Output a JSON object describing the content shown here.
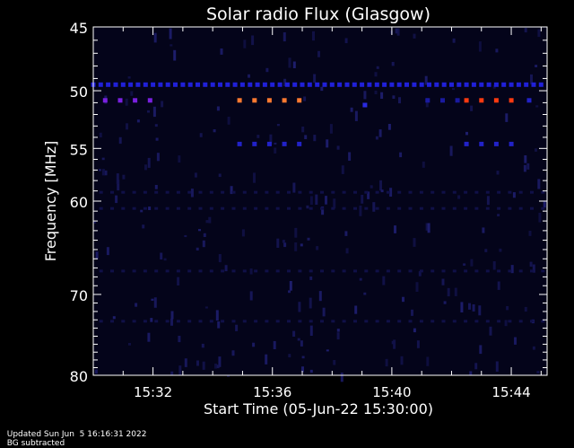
{
  "chart_data": {
    "type": "heatmap",
    "title": "Solar radio Flux (Glasgow)",
    "xlabel": "Start Time (05-Jun-22 15:30:00)",
    "ylabel": "Frequency [MHz]",
    "x_unit": "minutes since 15:30:00",
    "xlim": [
      0,
      15.2
    ],
    "ylim": [
      45,
      80
    ],
    "x_ticks": [
      {
        "value": 2,
        "label": "15:32"
      },
      {
        "value": 6,
        "label": "15:36"
      },
      {
        "value": 10,
        "label": "15:40"
      },
      {
        "value": 14,
        "label": "15:44"
      }
    ],
    "y_ticks": [
      {
        "value": 45,
        "label": "45"
      },
      {
        "value": 50,
        "label": "50"
      },
      {
        "value": 55,
        "label": "55"
      },
      {
        "value": 60,
        "label": "60"
      },
      {
        "value": 70,
        "label": "70"
      },
      {
        "value": 80,
        "label": "80"
      }
    ],
    "background_color": "#04041a",
    "features": [
      {
        "name": "continuous band",
        "freq": 49.5,
        "t_start": 0.0,
        "t_end": 15.2,
        "period": 0.25,
        "color": "#2020d8"
      },
      {
        "name": "burst 1",
        "freq": 50.8,
        "t_start": 0.4,
        "t_end": 2.1,
        "period": 0.5,
        "color": "#7a20e0"
      },
      {
        "name": "burst 2",
        "freq": 50.8,
        "t_start": 4.9,
        "t_end": 7.0,
        "period": 0.5,
        "color": "#ff7a30"
      },
      {
        "name": "burst 2 lower",
        "freq": 54.6,
        "t_start": 4.9,
        "t_end": 7.0,
        "period": 0.5,
        "color": "#2222c8"
      },
      {
        "name": "burst 3",
        "freq": 50.8,
        "t_start": 12.5,
        "t_end": 14.1,
        "period": 0.5,
        "color": "#ff3a10"
      },
      {
        "name": "burst 3 lower",
        "freq": 54.6,
        "t_start": 12.5,
        "t_end": 14.1,
        "period": 0.5,
        "color": "#2222c8"
      },
      {
        "name": "faint row",
        "freq": 50.8,
        "t_start": 11.2,
        "t_end": 12.3,
        "period": 0.5,
        "color": "#1a1aa0"
      },
      {
        "name": "faint row end",
        "freq": 50.8,
        "t_start": 14.6,
        "t_end": 14.9,
        "period": 0.5,
        "color": "#2222c8"
      },
      {
        "name": "spike",
        "freq": 51.2,
        "t_start": 9.1,
        "t_end": 9.2,
        "period": 0.5,
        "color": "#2a2ae0"
      }
    ]
  },
  "footer": {
    "updated": "Updated Sun Jun  5 16:16:31 2022",
    "note": "BG subtracted"
  }
}
